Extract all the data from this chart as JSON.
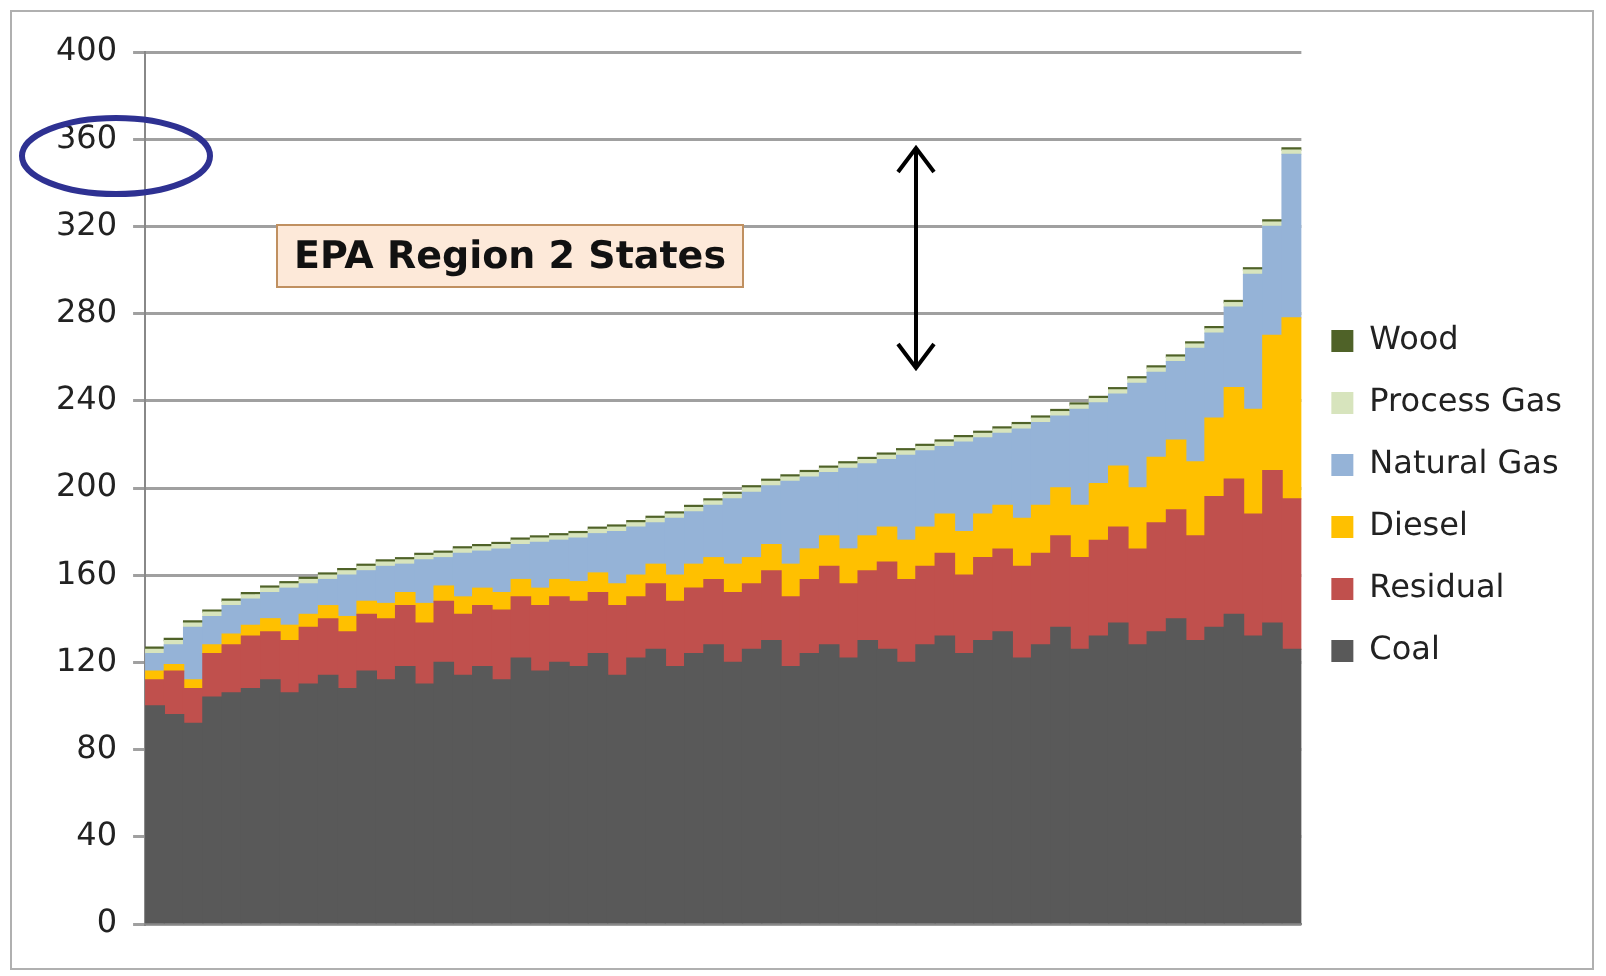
{
  "chart_data": {
    "type": "bar",
    "stacked": true,
    "categories": [
      null,
      null,
      null,
      null,
      null,
      null,
      null,
      null,
      null,
      null,
      null,
      null,
      null,
      null,
      null,
      null,
      null,
      null,
      null,
      null,
      null,
      null,
      null,
      null,
      null,
      null,
      null,
      null,
      null,
      null,
      null,
      null,
      null,
      null,
      null,
      null,
      null,
      null,
      null,
      null,
      null,
      null,
      null,
      null,
      null,
      null,
      null,
      null,
      null,
      null,
      null,
      null,
      null,
      null,
      null,
      null,
      null,
      null,
      null,
      null
    ],
    "series": [
      {
        "name": "Coal",
        "color": "#595959",
        "values": [
          100,
          96,
          92,
          104,
          106,
          108,
          112,
          106,
          110,
          114,
          108,
          116,
          112,
          118,
          110,
          120,
          114,
          118,
          112,
          122,
          116,
          120,
          118,
          124,
          114,
          122,
          126,
          118,
          124,
          128,
          120,
          126,
          130,
          118,
          124,
          128,
          122,
          130,
          126,
          120,
          128,
          132,
          124,
          130,
          134,
          122,
          128,
          136,
          126,
          132,
          138,
          128,
          134,
          140,
          130,
          136,
          142,
          132,
          138,
          126
        ]
      },
      {
        "name": "Residual",
        "color": "#c0504d",
        "values": [
          12,
          20,
          16,
          20,
          22,
          24,
          22,
          24,
          26,
          26,
          26,
          26,
          28,
          28,
          28,
          28,
          28,
          28,
          32,
          28,
          30,
          30,
          30,
          28,
          32,
          28,
          30,
          30,
          30,
          30,
          32,
          30,
          32,
          32,
          34,
          36,
          34,
          32,
          40,
          38,
          36,
          38,
          36,
          38,
          38,
          42,
          42,
          42,
          42,
          44,
          44,
          44,
          50,
          50,
          48,
          60,
          62,
          56,
          70,
          69
        ]
      },
      {
        "name": "Diesel",
        "color": "#ffc000",
        "values": [
          4,
          3,
          4,
          4,
          5,
          5,
          6,
          7,
          6,
          6,
          7,
          6,
          7,
          6,
          9,
          7,
          8,
          8,
          8,
          8,
          8,
          8,
          9,
          9,
          10,
          10,
          9,
          12,
          11,
          10,
          13,
          12,
          12,
          15,
          14,
          14,
          16,
          16,
          16,
          18,
          18,
          18,
          20,
          20,
          20,
          22,
          22,
          22,
          24,
          26,
          28,
          28,
          30,
          32,
          34,
          36,
          42,
          48,
          62,
          83
        ]
      },
      {
        "name": "Natural Gas",
        "color": "#95b3d7",
        "values": [
          8,
          9,
          24,
          13,
          13,
          12,
          12,
          17,
          14,
          12,
          19,
          14,
          17,
          13,
          20,
          13,
          20,
          17,
          20,
          16,
          21,
          18,
          20,
          18,
          24,
          22,
          19,
          26,
          24,
          24,
          30,
          30,
          27,
          38,
          33,
          29,
          37,
          33,
          31,
          39,
          35,
          31,
          41,
          35,
          33,
          41,
          38,
          33,
          44,
          37,
          33,
          48,
          39,
          36,
          52,
          39,
          37,
          62,
          50,
          75
        ]
      },
      {
        "name": "Process Gas",
        "color": "#d7e4bd",
        "values": [
          2,
          2,
          2,
          2,
          2,
          2,
          2,
          2,
          2,
          2,
          2,
          2,
          2,
          2,
          2,
          2,
          2,
          2,
          2,
          2,
          2,
          2,
          2,
          2,
          2,
          2,
          2,
          2,
          2,
          2,
          2,
          2,
          2,
          2,
          2,
          2,
          2,
          2,
          2,
          2,
          2,
          2,
          2,
          2,
          2,
          2,
          2,
          2,
          2,
          2,
          2,
          2,
          2,
          2,
          2,
          2,
          2,
          2,
          2,
          2
        ]
      },
      {
        "name": "Wood",
        "color": "#4f6228",
        "values": [
          1,
          1,
          1,
          1,
          1,
          1,
          1,
          1,
          1,
          1,
          1,
          1,
          1,
          1,
          1,
          1,
          1,
          1,
          1,
          1,
          1,
          1,
          1,
          1,
          1,
          1,
          1,
          1,
          1,
          1,
          1,
          1,
          1,
          1,
          1,
          1,
          1,
          1,
          1,
          1,
          1,
          1,
          1,
          1,
          1,
          1,
          1,
          1,
          1,
          1,
          1,
          1,
          1,
          1,
          1,
          1,
          1,
          1,
          1,
          1
        ]
      }
    ],
    "ylim": [
      0,
      400
    ],
    "yticks": [
      0,
      40,
      80,
      120,
      160,
      200,
      240,
      280,
      320,
      360,
      400
    ],
    "grid": "y",
    "legend": "right",
    "tick_labels": "y",
    "annotations": [
      "EPA Region 2 States"
    ]
  }
}
